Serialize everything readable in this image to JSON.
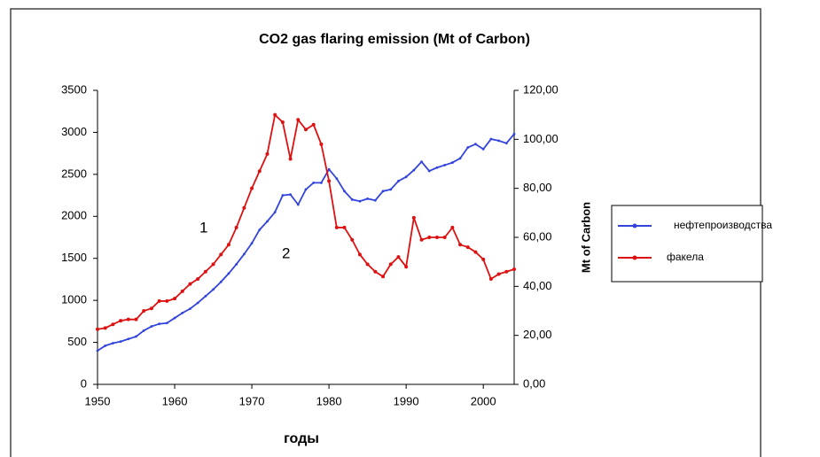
{
  "chart_data": {
    "type": "line",
    "title": "CO2 gas flaring emission (Mt of Carbon)",
    "x_label": "годы",
    "y2_label": "Mt of Carbon",
    "annotations": [
      "1",
      "2"
    ],
    "x": [
      1950,
      1951,
      1952,
      1953,
      1954,
      1955,
      1956,
      1957,
      1958,
      1959,
      1960,
      1961,
      1962,
      1963,
      1964,
      1965,
      1966,
      1967,
      1968,
      1969,
      1970,
      1971,
      1972,
      1973,
      1974,
      1975,
      1976,
      1977,
      1978,
      1979,
      1980,
      1981,
      1982,
      1983,
      1984,
      1985,
      1986,
      1987,
      1988,
      1989,
      1990,
      1991,
      1992,
      1993,
      1994,
      1995,
      1996,
      1997,
      1998,
      1999,
      2000,
      2001,
      2002,
      2003,
      2004
    ],
    "xlim": [
      1950,
      2004
    ],
    "xticks": [
      1950,
      1960,
      1970,
      1980,
      1990,
      2000
    ],
    "ylim": [
      0,
      3500
    ],
    "yticks": [
      0,
      500,
      1000,
      1500,
      2000,
      2500,
      3000,
      3500
    ],
    "y2lim": [
      0,
      120
    ],
    "y2ticks": [
      {
        "value": 0,
        "label": "0,00"
      },
      {
        "value": 20,
        "label": "20,00"
      },
      {
        "value": 40,
        "label": "40,00"
      },
      {
        "value": 60,
        "label": "60,00"
      },
      {
        "value": 80,
        "label": "80,00"
      },
      {
        "value": 100,
        "label": "100,00"
      },
      {
        "value": 120,
        "label": "120,00"
      }
    ],
    "legend": "right",
    "series": [
      {
        "name": "нефтепроизводства",
        "color": "#3344dd",
        "values": [
          400,
          460,
          490,
          510,
          540,
          570,
          640,
          690,
          720,
          730,
          790,
          850,
          900,
          970,
          1050,
          1130,
          1220,
          1320,
          1430,
          1550,
          1680,
          1840,
          1940,
          2050,
          2250,
          2260,
          2140,
          2320,
          2400,
          2400,
          2560,
          2450,
          2300,
          2200,
          2180,
          2210,
          2190,
          2300,
          2320,
          2420,
          2470,
          2550,
          2650,
          2540,
          2580,
          2610,
          2640,
          2690,
          2820,
          2860,
          2800,
          2920,
          2900,
          2870,
          2980
        ]
      },
      {
        "name": "факела",
        "color": "#dd1111",
        "axis": "y2",
        "values": [
          22.5,
          23,
          24.5,
          26,
          26.5,
          26.5,
          30,
          31,
          34,
          34,
          35,
          38,
          41,
          43,
          46,
          49,
          53,
          57,
          64,
          72,
          80,
          87,
          94,
          110,
          107,
          92,
          108,
          104,
          106,
          98,
          83,
          64,
          64,
          59,
          53,
          49,
          46,
          44,
          49,
          52,
          48,
          68,
          59,
          60,
          60,
          60,
          64,
          57,
          56,
          54,
          51,
          43,
          45,
          46,
          47
        ]
      }
    ]
  }
}
